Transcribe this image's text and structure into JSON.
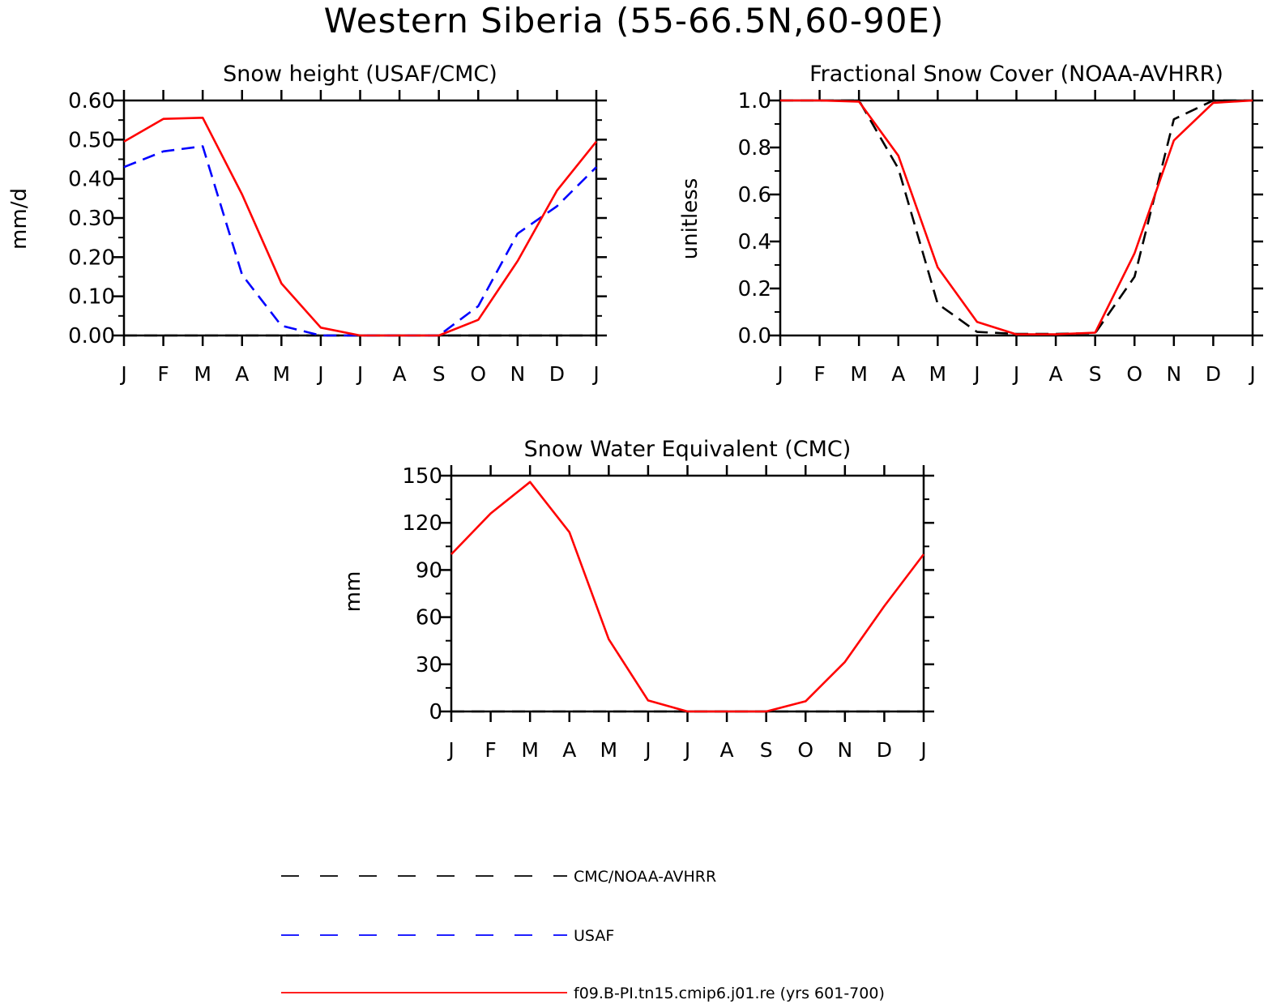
{
  "page_title": "Western Siberia (55-66.5N,60-90E)",
  "colors": {
    "obs_black": "#000000",
    "obs_usaf": "#0000ff",
    "model": "#ff0000"
  },
  "chart_data": [
    {
      "type": "line",
      "title": "Snow height (USAF/CMC)",
      "xlabel": "",
      "ylabel": "mm/d",
      "categories": [
        "J",
        "F",
        "M",
        "A",
        "M",
        "J",
        "J",
        "A",
        "S",
        "O",
        "N",
        "D",
        "J"
      ],
      "ylim": [
        0,
        0.6
      ],
      "yticks": [
        "0.00",
        "0.10",
        "0.20",
        "0.30",
        "0.40",
        "0.50",
        "0.60"
      ],
      "grid": false,
      "series": [
        {
          "name": "CMC/NOAA-AVHRR",
          "style": "dashed",
          "color": "#000000",
          "values": [
            0,
            0,
            0,
            0,
            0,
            0,
            0,
            0,
            0,
            0,
            0,
            0,
            0
          ]
        },
        {
          "name": "USAF",
          "style": "dashed",
          "color": "#0000ff",
          "values": [
            0.43,
            0.47,
            0.483,
            0.155,
            0.025,
            0,
            0,
            0,
            0,
            0.075,
            0.26,
            0.33,
            0.43
          ]
        },
        {
          "name": "f09.B-PI.tn15.cmip6.j01.re (yrs 601-700)",
          "style": "solid",
          "color": "#ff0000",
          "values": [
            0.495,
            0.553,
            0.556,
            0.36,
            0.133,
            0.02,
            0,
            0,
            0,
            0.04,
            0.19,
            0.37,
            0.495
          ]
        }
      ]
    },
    {
      "type": "line",
      "title": "Fractional Snow Cover (NOAA-AVHRR)",
      "xlabel": "",
      "ylabel": "unitless",
      "categories": [
        "J",
        "F",
        "M",
        "A",
        "M",
        "J",
        "J",
        "A",
        "S",
        "O",
        "N",
        "D",
        "J"
      ],
      "ylim": [
        0,
        1
      ],
      "yticks": [
        "0.0",
        "0.2",
        "0.4",
        "0.6",
        "0.8",
        "1.0"
      ],
      "grid": false,
      "series": [
        {
          "name": "CMC/NOAA-AVHRR",
          "style": "dashed",
          "color": "#000000",
          "values": [
            1,
            1,
            1,
            0.71,
            0.135,
            0.015,
            0.007,
            0.007,
            0.01,
            0.25,
            0.92,
            1,
            1
          ]
        },
        {
          "name": "f09.B-PI.tn15.cmip6.j01.re (yrs 601-700)",
          "style": "solid",
          "color": "#ff0000",
          "values": [
            1,
            1,
            0.995,
            0.765,
            0.29,
            0.058,
            0.005,
            0.005,
            0.012,
            0.35,
            0.83,
            0.99,
            1
          ]
        }
      ]
    },
    {
      "type": "line",
      "title": "Snow Water Equivalent (CMC)",
      "xlabel": "",
      "ylabel": "mm",
      "categories": [
        "J",
        "F",
        "M",
        "A",
        "M",
        "J",
        "J",
        "A",
        "S",
        "O",
        "N",
        "D",
        "J"
      ],
      "ylim": [
        0,
        150
      ],
      "yticks": [
        "0",
        "30",
        "60",
        "90",
        "120",
        "150"
      ],
      "grid": false,
      "series": [
        {
          "name": "CMC/NOAA-AVHRR",
          "style": "dashed",
          "color": "#000000",
          "values": [
            0,
            0,
            0,
            0,
            0,
            0,
            0,
            0,
            0,
            0,
            0,
            0,
            0
          ]
        },
        {
          "name": "f09.B-PI.tn15.cmip6.j01.re (yrs 601-700)",
          "style": "solid",
          "color": "#ff0000",
          "values": [
            100,
            126,
            146,
            114,
            46,
            7,
            0,
            0,
            0,
            6.5,
            31.5,
            67,
            100
          ]
        }
      ]
    }
  ],
  "legend": [
    {
      "label": "CMC/NOAA-AVHRR",
      "style": "dashed",
      "color": "#000000"
    },
    {
      "label": "USAF",
      "style": "dashed",
      "color": "#0000ff"
    },
    {
      "label": "f09.B-PI.tn15.cmip6.j01.re (yrs 601-700)",
      "style": "solid",
      "color": "#ff0000"
    }
  ]
}
